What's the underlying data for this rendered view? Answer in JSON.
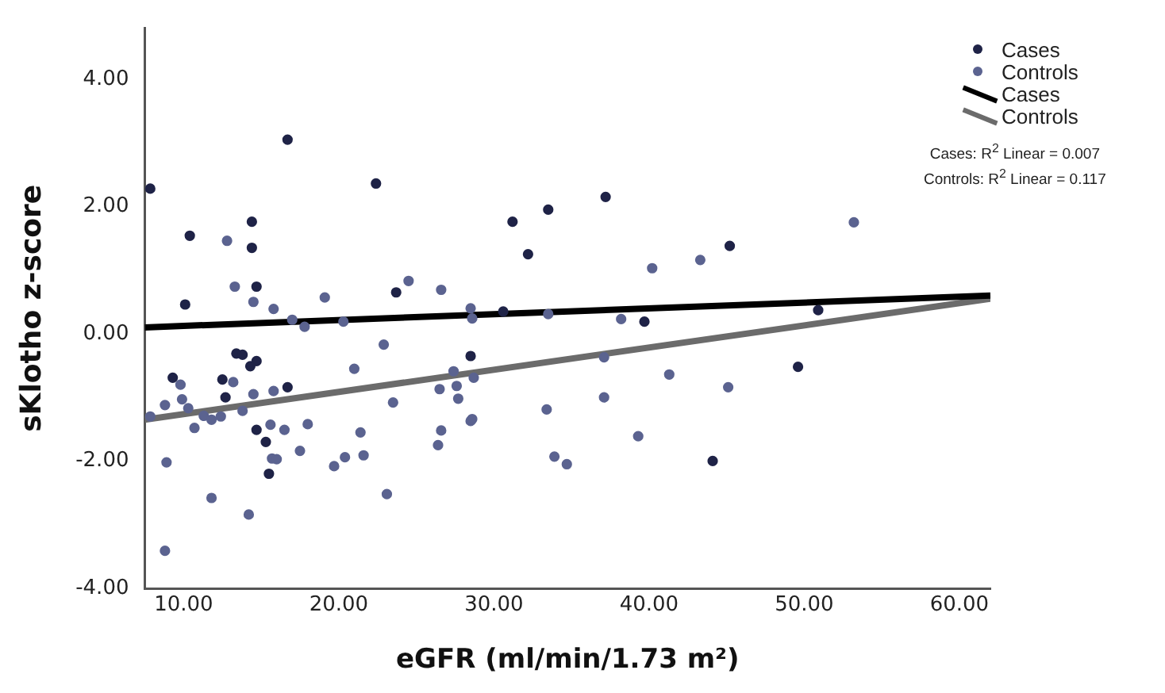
{
  "chart_data": {
    "type": "scatter",
    "xlabel": "eGFR (ml/min/1.73 m²)",
    "ylabel": "sKlotho z-score",
    "xlim": [
      7.5,
      62
    ],
    "ylim": [
      -4,
      4.8
    ],
    "xticks": [
      {
        "value": 10,
        "label": "10.00"
      },
      {
        "value": 20,
        "label": "20.00"
      },
      {
        "value": 30,
        "label": "30.00"
      },
      {
        "value": 40,
        "label": "40.00"
      },
      {
        "value": 50,
        "label": "50.00"
      },
      {
        "value": 60,
        "label": "60.00"
      }
    ],
    "yticks": [
      {
        "value": -4,
        "label": "-4.00"
      },
      {
        "value": -2,
        "label": "-2.00"
      },
      {
        "value": 0,
        "label": "0.00"
      },
      {
        "value": 2,
        "label": "2.00"
      },
      {
        "value": 4,
        "label": "4.00"
      }
    ],
    "grid": false,
    "legend": "top right",
    "annotations": [
      "Cases: R$^{2}$ Linear = 0.007",
      "Controls: R$^{2}$ Linear = 0.117"
    ],
    "series": [
      {
        "name": "Cases",
        "type": "scatter",
        "color": "#1f2347",
        "x": [
          7.85,
          16.7,
          22.4,
          10.4,
          14.4,
          14.4,
          14.7,
          10.1,
          23.7,
          31.2,
          32.2,
          30.6,
          28.5,
          33.5,
          37.2,
          45.2,
          50.9,
          39.7,
          9.3,
          12.5,
          12.7,
          13.4,
          13.8,
          14.3,
          14.7,
          14.7,
          15.3,
          15.5,
          16.7,
          49.6,
          44.1
        ],
        "values": [
          2.28,
          3.05,
          2.36,
          1.54,
          1.76,
          1.35,
          0.74,
          0.46,
          0.65,
          1.76,
          1.25,
          0.35,
          -0.35,
          1.95,
          2.15,
          1.38,
          0.37,
          0.19,
          -0.69,
          -0.72,
          -1.0,
          -0.31,
          -0.33,
          -0.51,
          -0.43,
          -1.51,
          -1.7,
          -2.2,
          -0.84,
          -0.52,
          -2.0
        ]
      },
      {
        "name": "Controls",
        "type": "scatter",
        "color": "#5b6390",
        "x": [
          12.8,
          13.3,
          14.5,
          15.8,
          19.1,
          24.5,
          26.6,
          28.5,
          28.6,
          17.0,
          17.8,
          20.3,
          22.9,
          53.2,
          40.2,
          43.3,
          38.2,
          33.5,
          7.85,
          8.8,
          8.9,
          8.8,
          9.8,
          9.9,
          10.3,
          10.7,
          11.3,
          11.8,
          11.8,
          12.4,
          13.2,
          13.8,
          14.5,
          14.2,
          15.6,
          15.8,
          15.7,
          16.0,
          16.5,
          17.5,
          18.0,
          19.7,
          20.4,
          21.0,
          21.4,
          21.6,
          23.1,
          23.5,
          26.4,
          26.5,
          26.6,
          27.4,
          27.6,
          27.7,
          28.5,
          28.6,
          28.7,
          37.1,
          41.3,
          45.1,
          37.1,
          33.4,
          39.3,
          33.9,
          34.7
        ],
        "values": [
          1.46,
          0.74,
          0.5,
          0.39,
          0.57,
          0.83,
          0.69,
          0.4,
          0.24,
          0.22,
          0.11,
          0.19,
          -0.17,
          1.75,
          1.03,
          1.16,
          0.23,
          0.31,
          -1.3,
          -1.12,
          -2.02,
          -3.41,
          -0.8,
          -1.03,
          -1.17,
          -1.48,
          -1.29,
          -1.35,
          -2.58,
          -1.3,
          -0.76,
          -1.21,
          -0.95,
          -2.84,
          -1.43,
          -0.9,
          -1.96,
          -1.97,
          -1.51,
          -1.84,
          -1.42,
          -2.08,
          -1.94,
          -0.55,
          -1.55,
          -1.91,
          -2.52,
          -1.08,
          -1.75,
          -0.87,
          -1.52,
          -0.59,
          -0.82,
          -1.02,
          -1.37,
          -1.34,
          -0.69,
          -0.37,
          -0.64,
          -0.84,
          -1.0,
          -1.19,
          -1.61,
          -1.93,
          -2.05
        ]
      },
      {
        "name": "Cases",
        "type": "line",
        "color": "#000000",
        "x": [
          7.5,
          62
        ],
        "values": [
          0.1,
          0.6
        ]
      },
      {
        "name": "Controls",
        "type": "line",
        "color": "#6b6b6b",
        "x": [
          7.5,
          62
        ],
        "values": [
          -1.35,
          0.55
        ]
      }
    ]
  }
}
